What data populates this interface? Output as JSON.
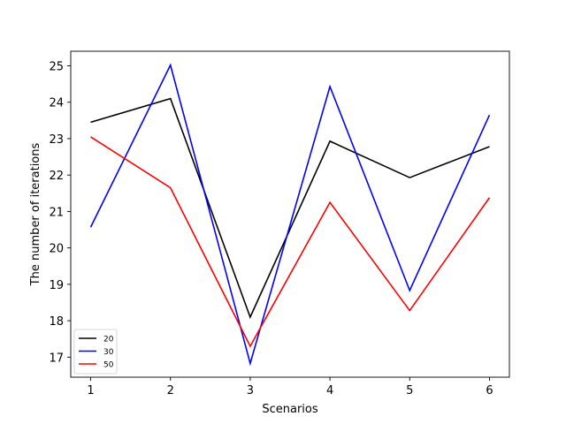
{
  "chart_data": {
    "type": "line",
    "title": "",
    "xlabel": "Scenarios",
    "ylabel": "The number of iterations",
    "x": [
      1,
      2,
      3,
      4,
      5,
      6
    ],
    "x_ticks": [
      "1",
      "2",
      "3",
      "4",
      "5",
      "6"
    ],
    "y_ticks": [
      "17",
      "18",
      "19",
      "20",
      "21",
      "22",
      "23",
      "24",
      "25"
    ],
    "xlim": [
      0.75,
      6.25
    ],
    "ylim": [
      16.45,
      25.4
    ],
    "grid": false,
    "legend_position": "lower-left",
    "series": [
      {
        "name": "20",
        "color": "#000000",
        "values": [
          23.45,
          24.1,
          18.1,
          22.93,
          21.93,
          22.78
        ]
      },
      {
        "name": "30",
        "color": "#0000ff",
        "values": [
          20.57,
          25.02,
          16.83,
          24.43,
          18.83,
          23.65
        ]
      },
      {
        "name": "50",
        "color": "#ff0000",
        "values": [
          23.05,
          21.65,
          17.3,
          21.25,
          18.28,
          21.38
        ]
      }
    ]
  }
}
